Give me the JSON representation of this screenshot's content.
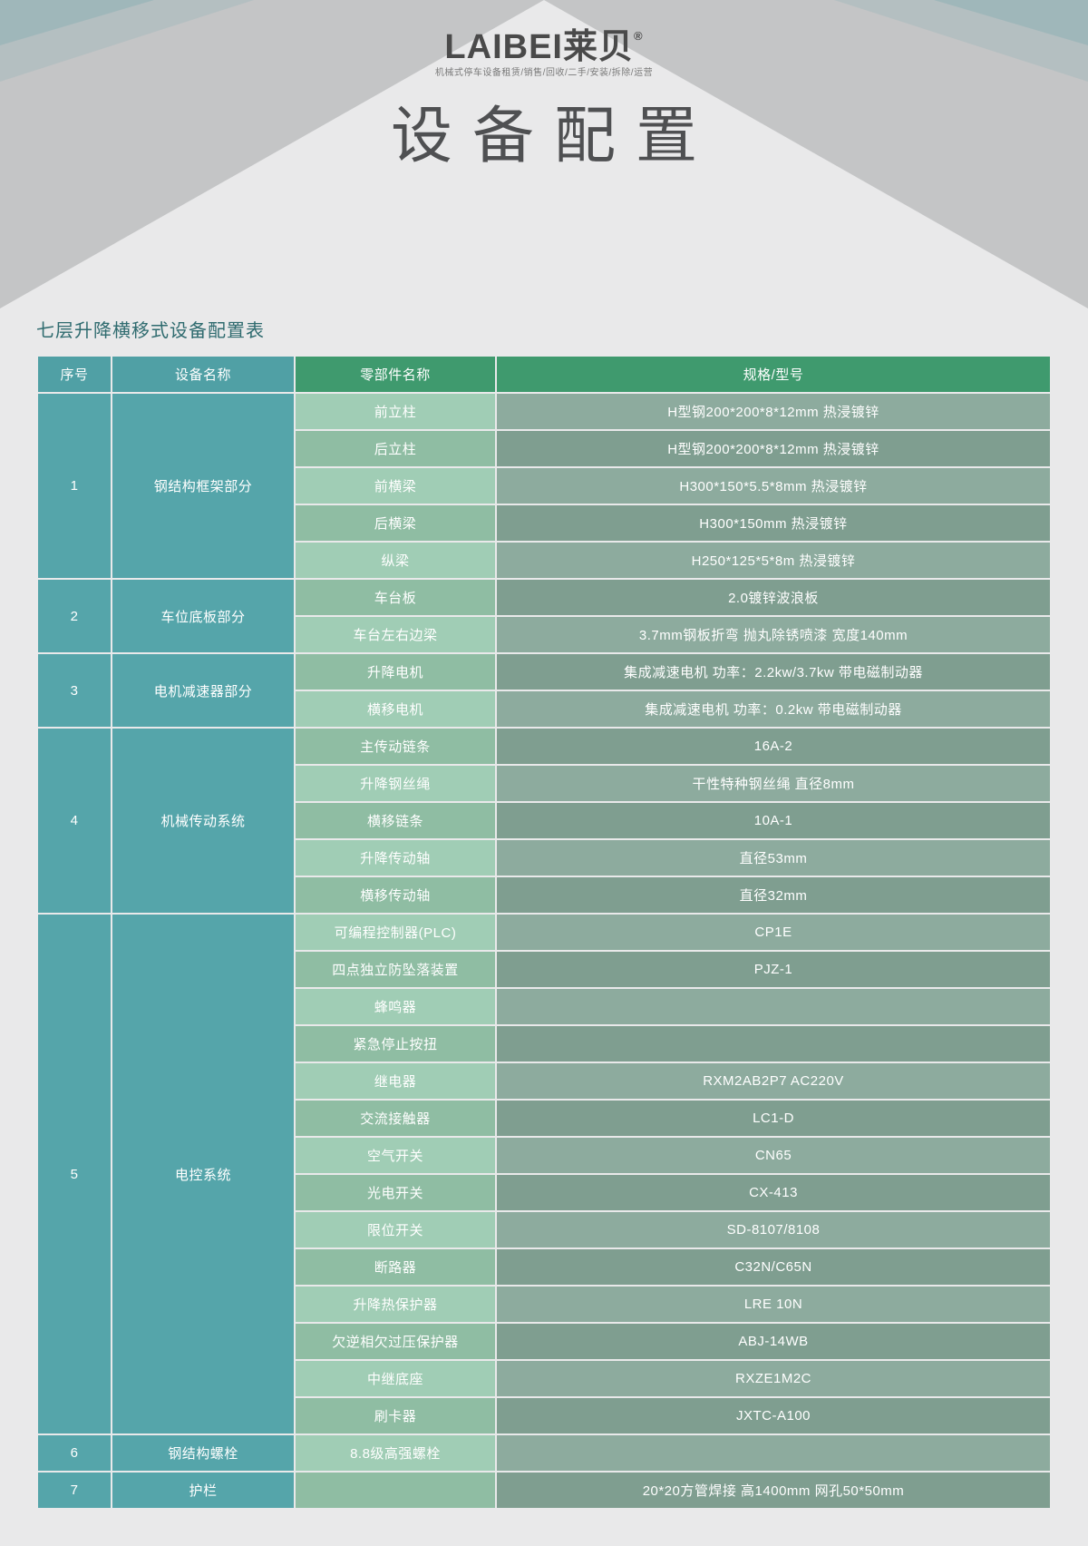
{
  "header": {
    "logo_main": "LAIBEI莱贝",
    "logo_reg": "®",
    "logo_sub": "机械式停车设备租赁/销售/回收/二手/安装/拆除/运营",
    "main_title": "设备配置"
  },
  "table": {
    "title": "七层升降横移式设备配置表",
    "columns": [
      "序号",
      "设备名称",
      "零部件名称",
      "规格/型号"
    ],
    "col_widths": [
      "80px",
      "200px",
      "220px",
      "auto"
    ],
    "header_colors": [
      "#50a0a5",
      "#50a0a5",
      "#3f9a6e",
      "#3f9a6e"
    ],
    "col12_color": "#55a5aa",
    "col3_colors": [
      "#a0cdb5",
      "#8fbda3"
    ],
    "col4_colors": [
      "#8dab9e",
      "#7f9e90"
    ],
    "groups": [
      {
        "num": "1",
        "name": "钢结构框架部分",
        "rows": [
          {
            "c3": "前立柱",
            "c4": "H型钢200*200*8*12mm 热浸镀锌"
          },
          {
            "c3": "后立柱",
            "c4": "H型钢200*200*8*12mm  热浸镀锌"
          },
          {
            "c3": "前横梁",
            "c4": "H300*150*5.5*8mm  热浸镀锌"
          },
          {
            "c3": "后横梁",
            "c4": "H300*150mm  热浸镀锌"
          },
          {
            "c3": "纵梁",
            "c4": "H250*125*5*8m  热浸镀锌"
          }
        ]
      },
      {
        "num": "2",
        "name": "车位底板部分",
        "rows": [
          {
            "c3": "车台板",
            "c4": "2.0镀锌波浪板"
          },
          {
            "c3": "车台左右边梁",
            "c4": "3.7mm钢板折弯  抛丸除锈喷漆  宽度140mm"
          }
        ]
      },
      {
        "num": "3",
        "name": "电机减速器部分",
        "rows": [
          {
            "c3": "升降电机",
            "c4": "集成减速电机  功率：2.2kw/3.7kw  带电磁制动器"
          },
          {
            "c3": "横移电机",
            "c4": "集成减速电机  功率：0.2kw  带电磁制动器"
          }
        ]
      },
      {
        "num": "4",
        "name": "机械传动系统",
        "rows": [
          {
            "c3": "主传动链条",
            "c4": "16A-2"
          },
          {
            "c3": "升降钢丝绳",
            "c4": "干性特种钢丝绳  直径8mm"
          },
          {
            "c3": "横移链条",
            "c4": "10A-1"
          },
          {
            "c3": "升降传动轴",
            "c4": "直径53mm"
          },
          {
            "c3": "横移传动轴",
            "c4": "直径32mm"
          }
        ]
      },
      {
        "num": "5",
        "name": "电控系统",
        "rows": [
          {
            "c3": "可编程控制器(PLC)",
            "c4": "CP1E"
          },
          {
            "c3": "四点独立防坠落装置",
            "c4": "PJZ-1"
          },
          {
            "c3": "蜂鸣器",
            "c4": ""
          },
          {
            "c3": "紧急停止按扭",
            "c4": ""
          },
          {
            "c3": "继电器",
            "c4": "RXM2AB2P7   AC220V"
          },
          {
            "c3": "交流接触器",
            "c4": "LC1-D"
          },
          {
            "c3": "空气开关",
            "c4": "CN65"
          },
          {
            "c3": "光电开关",
            "c4": "CX-413"
          },
          {
            "c3": "限位开关",
            "c4": "SD-8107/8108"
          },
          {
            "c3": "断路器",
            "c4": "C32N/C65N"
          },
          {
            "c3": "升降热保护器",
            "c4": "LRE 10N"
          },
          {
            "c3": "欠逆相欠过压保护器",
            "c4": "ABJ-14WB"
          },
          {
            "c3": "中继底座",
            "c4": "RXZE1M2C"
          },
          {
            "c3": "刷卡器",
            "c4": "JXTC-A100"
          }
        ]
      },
      {
        "num": "6",
        "name": "钢结构螺栓",
        "rows": [
          {
            "c3": "8.8级高强螺栓",
            "c4": ""
          }
        ]
      },
      {
        "num": "7",
        "name": "护栏",
        "rows": [
          {
            "c3": "",
            "c4": "20*20方管焊接  高1400mm  网孔50*50mm"
          }
        ]
      }
    ]
  }
}
